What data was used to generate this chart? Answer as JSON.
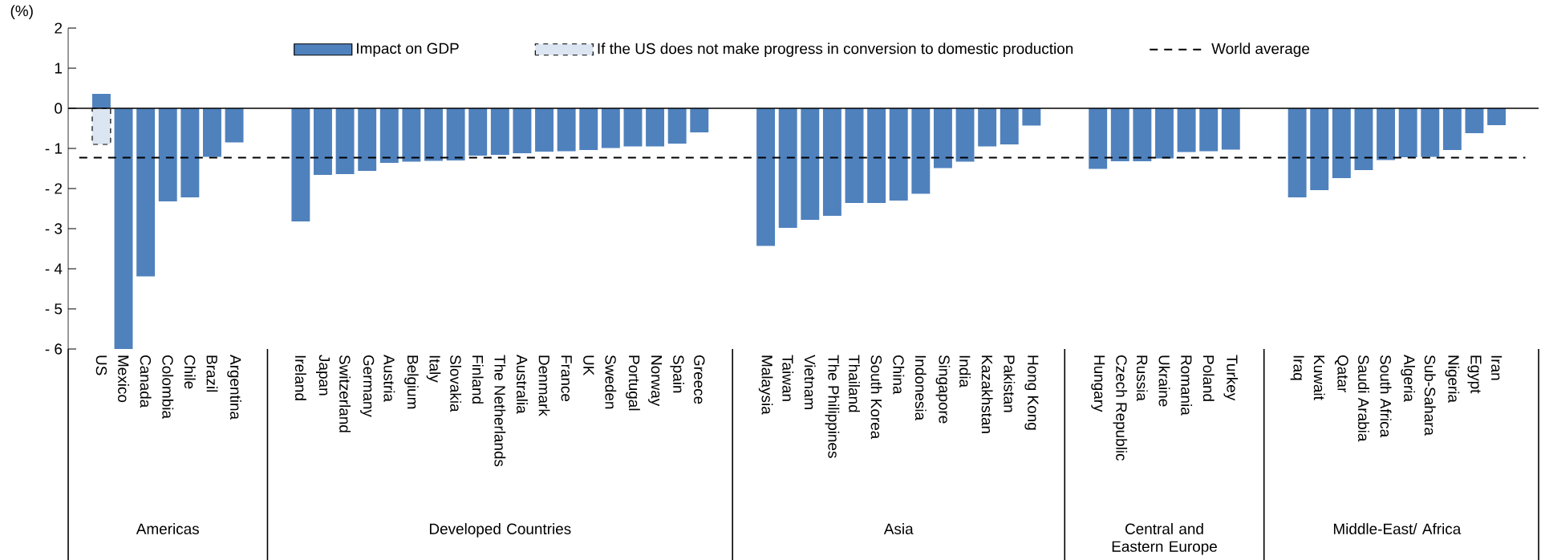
{
  "chart_data": {
    "type": "bar",
    "ylabel": "(%)",
    "categories": [
      "US",
      "Mexico",
      "Canada",
      "Colombia",
      "Chile",
      "Brazil",
      "Argentina",
      null,
      null,
      "Ireland",
      "Japan",
      "Switzerland",
      "Germany",
      "Austria",
      "Belgium",
      "Italy",
      "Slovakia",
      "Finland",
      "The Netherlands",
      "Australia",
      "Denmark",
      "France",
      "UK",
      "Sweden",
      "Portugal",
      "Norway",
      "Spain",
      "Greece",
      null,
      null,
      "Malaysia",
      "Taiwan",
      "Vietnam",
      "The Philippines",
      "Thailand",
      "South Korea",
      "China",
      "Indonesia",
      "Singapore",
      "India",
      "Kazakhstan",
      "Pakistan",
      "Hong Kong",
      null,
      null,
      "Hungary",
      "Czech Republic",
      "Russia",
      "Ukraine",
      "Romania",
      "Poland",
      "Turkey",
      null,
      null,
      "Iraq",
      "Kuwait",
      "Qatar",
      "Saudi Arabia",
      "South Africa",
      "Algeria",
      "Sub-Sahara",
      "Nigeria",
      "Egypt",
      "Iran"
    ],
    "series": [
      {
        "name": "Impact on GDP",
        "color": "#4f81bd",
        "values": [
          0.36,
          -6.0,
          -4.19,
          -2.32,
          -2.22,
          -1.21,
          -0.85,
          null,
          null,
          -2.82,
          -1.66,
          -1.64,
          -1.56,
          -1.36,
          -1.33,
          -1.31,
          -1.3,
          -1.18,
          -1.16,
          -1.12,
          -1.08,
          -1.07,
          -1.04,
          -0.99,
          -0.95,
          -0.95,
          -0.88,
          -0.6,
          null,
          null,
          -3.43,
          -2.98,
          -2.78,
          -2.68,
          -2.36,
          -2.36,
          -2.3,
          -2.13,
          -1.49,
          -1.33,
          -0.95,
          -0.9,
          -0.43,
          null,
          null,
          -1.51,
          -1.32,
          -1.32,
          -1.25,
          -1.09,
          -1.07,
          -1.03,
          null,
          null,
          -2.22,
          -2.04,
          -1.74,
          -1.54,
          -1.29,
          -1.22,
          -1.21,
          -1.04,
          -0.62,
          -0.42
        ]
      },
      {
        "name": "If the US does not make progress in conversion to domestic production",
        "color": "#dce6f2",
        "line_style": "dashed",
        "values": [
          -0.9,
          null,
          null,
          null,
          null,
          null,
          null,
          null,
          null,
          null,
          null,
          null,
          null,
          null,
          null,
          null,
          null,
          null,
          null,
          null,
          null,
          null,
          null,
          null,
          null,
          null,
          null,
          null,
          null,
          null,
          null,
          null,
          null,
          null,
          null,
          null,
          null,
          null,
          null,
          null,
          null,
          null,
          null,
          null,
          null,
          null,
          null,
          null,
          null,
          null,
          null,
          null,
          null,
          null,
          null,
          null,
          null,
          null,
          null,
          null,
          null,
          null,
          null,
          null
        ]
      }
    ],
    "ylim": [
      -6,
      2
    ],
    "yticks": [
      {
        "value": -6,
        "label": "- 6"
      },
      {
        "value": -5,
        "label": "- 5"
      },
      {
        "value": -4,
        "label": "- 4"
      },
      {
        "value": -3,
        "label": "- 3"
      },
      {
        "value": -2,
        "label": "- 2"
      },
      {
        "value": -1,
        "label": "- 1"
      },
      0,
      1,
      2
    ],
    "ref_lines": [
      {
        "axis": "y",
        "value": -1.23,
        "label": "World average",
        "color": "#000000",
        "line_style": "dashed"
      }
    ],
    "annotations": [
      "Americas",
      "Developed Countries",
      "Asia",
      "Central and Eastern Europe",
      "Middle-East/ Africa"
    ],
    "legend": "top"
  }
}
